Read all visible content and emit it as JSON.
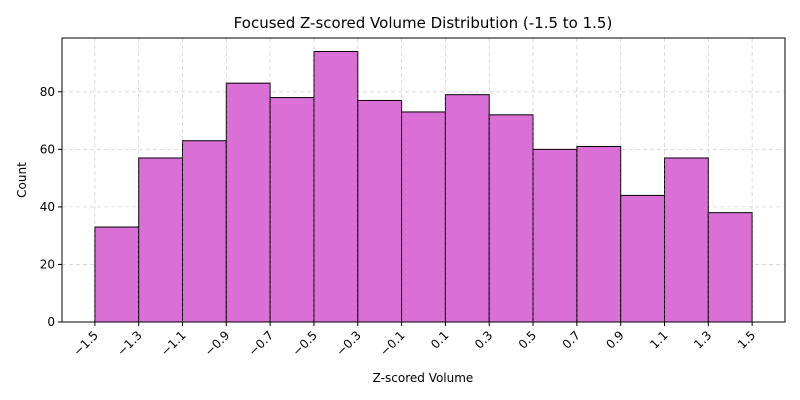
{
  "chart_data": {
    "type": "bar",
    "title": "Focused Z-scored Volume Distribution (-1.5 to 1.5)",
    "xlabel": "Z-scored Volume",
    "ylabel": "Count",
    "bin_edges": [
      -1.5,
      -1.3,
      -1.1,
      -0.9,
      -0.7,
      -0.5,
      -0.3,
      -0.1,
      0.1,
      0.3,
      0.5,
      0.7,
      0.9,
      1.1,
      1.3,
      1.5
    ],
    "x_tick_labels": [
      "−1.5",
      "−1.3",
      "−1.1",
      "−0.9",
      "−0.7",
      "−0.5",
      "−0.3",
      "−0.1",
      "0.1",
      "0.3",
      "0.5",
      "0.7",
      "0.9",
      "1.1",
      "1.3",
      "1.5"
    ],
    "values": [
      33,
      57,
      63,
      83,
      78,
      94,
      77,
      73,
      79,
      72,
      60,
      61,
      44,
      57,
      38
    ],
    "y_ticks": [
      0,
      20,
      40,
      60,
      80
    ],
    "y_tick_labels": [
      "0",
      "20",
      "40",
      "60",
      "80"
    ],
    "xlim": [
      -1.65,
      1.65
    ],
    "ylim": [
      0,
      98.7
    ],
    "grid": true,
    "bar_color": "#da70d6",
    "edge_color": "#000000",
    "grid_color": "#b0b0b0"
  }
}
